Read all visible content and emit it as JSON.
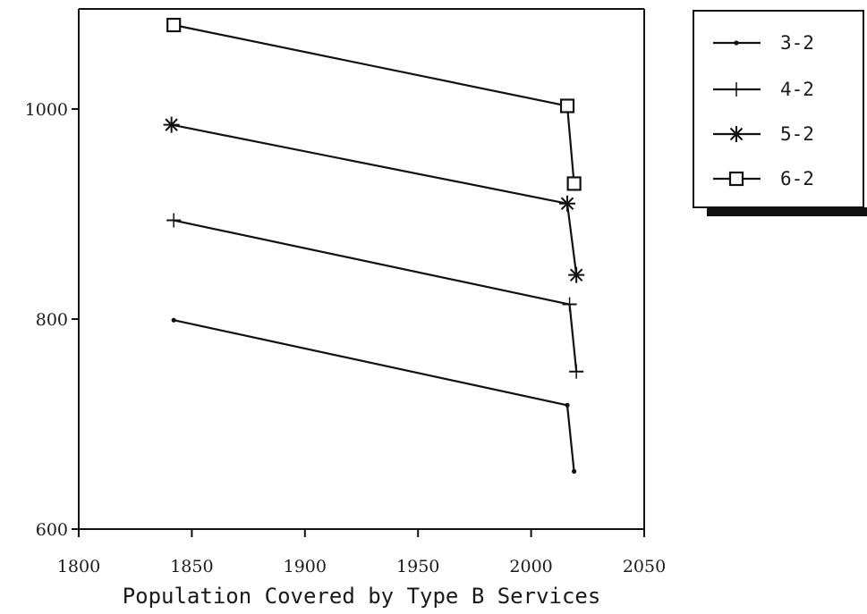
{
  "chart_data": {
    "type": "line",
    "xlabel": "Population Covered by Type B Services",
    "ylabel": "",
    "xlim": [
      1800,
      2050
    ],
    "ylim": [
      600,
      1100
    ],
    "xticks": [
      "1800",
      "1850",
      "1900",
      "1950",
      "2000",
      "2050"
    ],
    "yticks": [
      "600",
      "800",
      "1000"
    ],
    "grid": false,
    "legend_position": "top-right, outside plot",
    "series": [
      {
        "name": "3-2",
        "marker": "dot",
        "x": [
          1842,
          2016,
          2019
        ],
        "y": [
          799,
          718,
          655
        ]
      },
      {
        "name": "4-2",
        "marker": "plus",
        "x": [
          1842,
          2017,
          2020
        ],
        "y": [
          894,
          814,
          750
        ]
      },
      {
        "name": "5-2",
        "marker": "star",
        "x": [
          1841,
          2016,
          2020
        ],
        "y": [
          985,
          910,
          842
        ]
      },
      {
        "name": "6-2",
        "marker": "square",
        "x": [
          1842,
          2016,
          2019
        ],
        "y": [
          1080,
          1003,
          929
        ]
      }
    ]
  }
}
